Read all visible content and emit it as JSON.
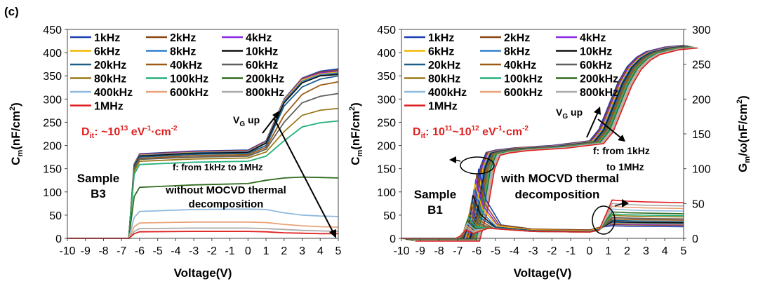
{
  "panel_label": "(c)",
  "legend_labels": [
    "1kHz",
    "2kHz",
    "4kHz",
    "6kHz",
    "8kHz",
    "10kHz",
    "20kHz",
    "40kHz",
    "60kHz",
    "80kHz",
    "100kHz",
    "200kHz",
    "400kHz",
    "600kHz",
    "800kHz",
    "1MHz"
  ],
  "colors": {
    "series": [
      "#1f3fb4",
      "#8b4513",
      "#8a2be2",
      "#f0b800",
      "#2f80d0",
      "#111111",
      "#1c5d8a",
      "#9c5a14",
      "#5e5e5e",
      "#9a7a18",
      "#23b07a",
      "#2e6b1e",
      "#8fb9dd",
      "#e8a37a",
      "#aaaaaa",
      "#e02020"
    ],
    "annotation_red": "#e02020"
  },
  "chart_data": [
    {
      "type": "line",
      "xlabel": "Voltage(V)",
      "ylabel_main": "C",
      "ylabel_sub": "m",
      "ylabel_rest": "(nF/cm",
      "ylabel_sup": "2",
      "ylabel_end": ")",
      "xlim": [
        -10,
        5
      ],
      "ylim": [
        0,
        450
      ],
      "x_ticks": [
        "-10",
        "-9",
        "-8",
        "-7",
        "-6",
        "-5",
        "-4",
        "-3",
        "-2",
        "-1",
        "0",
        "1",
        "2",
        "3",
        "4",
        "5"
      ],
      "y_ticks": [
        "0",
        "50",
        "100",
        "150",
        "200",
        "250",
        "300",
        "350",
        "400",
        "450"
      ],
      "legend_columns": 3,
      "grid": false,
      "series": [
        {
          "name": "1kHz",
          "x": [
            -10,
            -6.6,
            -6.3,
            -6,
            -3,
            0,
            1,
            2,
            3,
            4,
            5
          ],
          "y": [
            0,
            0,
            160,
            182,
            188,
            190,
            210,
            300,
            345,
            360,
            365
          ]
        },
        {
          "name": "2kHz",
          "x": [
            -10,
            -6.6,
            -6.3,
            -6,
            -3,
            0,
            1,
            2,
            3,
            4,
            5
          ],
          "y": [
            0,
            0,
            159,
            181,
            187,
            189,
            209,
            299,
            344,
            358,
            362
          ]
        },
        {
          "name": "4kHz",
          "x": [
            -10,
            -6.6,
            -6.3,
            -6,
            -3,
            0,
            1,
            2,
            3,
            4,
            5
          ],
          "y": [
            0,
            0,
            158,
            180,
            186,
            188,
            208,
            298,
            343,
            356,
            360
          ]
        },
        {
          "name": "6kHz",
          "x": [
            -10,
            -6.6,
            -6.3,
            -6,
            -3,
            0,
            1,
            2,
            3,
            4,
            5
          ],
          "y": [
            0,
            0,
            157,
            179,
            185,
            187,
            207,
            297,
            341,
            354,
            358
          ]
        },
        {
          "name": "8kHz",
          "x": [
            -10,
            -6.6,
            -6.3,
            -6,
            -3,
            0,
            1,
            2,
            3,
            4,
            5
          ],
          "y": [
            0,
            0,
            156,
            178,
            184,
            186,
            206,
            295,
            338,
            352,
            356
          ]
        },
        {
          "name": "10kHz",
          "x": [
            -10,
            -6.6,
            -6.3,
            -6,
            -3,
            0,
            1,
            2,
            3,
            4,
            5
          ],
          "y": [
            0,
            0,
            155,
            177,
            183,
            185,
            205,
            292,
            335,
            350,
            353
          ]
        },
        {
          "name": "20kHz",
          "x": [
            -10,
            -6.6,
            -6.3,
            -6,
            -3,
            0,
            1,
            2,
            3,
            4,
            5
          ],
          "y": [
            0,
            0,
            153,
            175,
            181,
            183,
            200,
            285,
            326,
            343,
            350
          ]
        },
        {
          "name": "40kHz",
          "x": [
            -10,
            -6.6,
            -6.3,
            -6,
            -3,
            0,
            1,
            2,
            3,
            4,
            5
          ],
          "y": [
            0,
            0,
            150,
            172,
            178,
            180,
            196,
            265,
            310,
            330,
            337
          ]
        },
        {
          "name": "60kHz",
          "x": [
            -10,
            -6.6,
            -6.3,
            -6,
            -3,
            0,
            1,
            2,
            3,
            4,
            5
          ],
          "y": [
            0,
            0,
            148,
            170,
            175,
            177,
            192,
            250,
            292,
            306,
            312
          ]
        },
        {
          "name": "80kHz",
          "x": [
            -10,
            -6.6,
            -6.3,
            -6,
            -3,
            0,
            1,
            2,
            3,
            4,
            5
          ],
          "y": [
            0,
            0,
            144,
            166,
            171,
            173,
            186,
            230,
            265,
            276,
            280
          ]
        },
        {
          "name": "100kHz",
          "x": [
            -10,
            -6.6,
            -6.3,
            -6,
            -3,
            0,
            1,
            2,
            3,
            4,
            5
          ],
          "y": [
            0,
            0,
            138,
            159,
            164,
            166,
            177,
            210,
            240,
            249,
            253
          ]
        },
        {
          "name": "200kHz",
          "x": [
            -10,
            -6.6,
            -6.3,
            -6,
            -3,
            0,
            1,
            2,
            3,
            4,
            5
          ],
          "y": [
            0,
            0,
            90,
            110,
            115,
            118,
            125,
            130,
            132,
            131,
            130
          ]
        },
        {
          "name": "400kHz",
          "x": [
            -10,
            -6.6,
            -6.3,
            -6,
            -3,
            0,
            1,
            2,
            3,
            4,
            5
          ],
          "y": [
            0,
            0,
            45,
            58,
            62,
            63,
            62,
            55,
            50,
            48,
            47
          ]
        },
        {
          "name": "600kHz",
          "x": [
            -10,
            -6.6,
            -6.3,
            -6,
            -3,
            0,
            1,
            2,
            3,
            4,
            5
          ],
          "y": [
            0,
            0,
            25,
            33,
            35,
            35,
            34,
            30,
            27,
            25,
            24
          ]
        },
        {
          "name": "800kHz",
          "x": [
            -10,
            -6.6,
            -6.3,
            -6,
            -3,
            0,
            1,
            2,
            3,
            4,
            5
          ],
          "y": [
            0,
            0,
            15,
            21,
            22,
            22,
            21,
            19,
            17,
            16,
            15
          ]
        },
        {
          "name": "1MHz",
          "x": [
            -10,
            -6.6,
            -6.3,
            -6,
            -3,
            0,
            1,
            2,
            3,
            4,
            5
          ],
          "y": [
            0,
            0,
            10,
            14,
            15,
            15,
            14,
            12,
            11,
            10,
            10
          ]
        }
      ],
      "annotations": {
        "dit_main": "D",
        "dit_sub": "it",
        "dit_colon": ": ~10",
        "dit_exp1": "13",
        "dit_unit": " eV",
        "dit_exp2": "-1",
        "dit_dot": "·cm",
        "dit_exp3": "-2",
        "vg_v": "V",
        "vg_sub": "G",
        "vg_up": " up",
        "freq": "f: from 1kHz to 1MHz",
        "sample_line1": "Sample",
        "sample_line2": "B3",
        "note_line1": "without MOCVD thermal",
        "note_line2": "decomposition"
      }
    },
    {
      "type": "line",
      "xlabel": "Voltage(V)",
      "ylabel_main": "C",
      "ylabel_sub": "m",
      "ylabel_rest": "(nF/cm",
      "ylabel_sup": "2",
      "ylabel_end": ")",
      "y2label_main": "G",
      "y2label_sub": "m",
      "y2label_rest": "/ω(nF/cm",
      "y2label_sup": "2",
      "y2label_end": ")",
      "xlim": [
        -10,
        5
      ],
      "ylim": [
        0,
        450
      ],
      "y2lim": [
        0,
        300
      ],
      "x_ticks": [
        "-10",
        "-9",
        "-8",
        "-7",
        "-6",
        "-5",
        "-4",
        "-3",
        "-2",
        "-1",
        "0",
        "1",
        "2",
        "3",
        "4",
        "5"
      ],
      "y_ticks": [
        "0",
        "50",
        "100",
        "150",
        "200",
        "250",
        "300",
        "350",
        "400",
        "450"
      ],
      "y2_ticks": [
        "0",
        "50",
        "100",
        "150",
        "200",
        "250",
        "300"
      ],
      "legend_columns": 3,
      "grid": false,
      "capacitance_x": [
        -10,
        -6.6,
        -6.2,
        -5.8,
        -5.5,
        -5,
        -4,
        -2,
        0,
        0.5,
        1,
        1.5,
        2,
        2.5,
        3,
        4,
        5
      ],
      "capacitance_base_y": [
        0,
        0,
        60,
        155,
        185,
        190,
        195,
        200,
        210,
        235,
        285,
        335,
        370,
        390,
        402,
        412,
        416
      ],
      "capacitance_x_shift_step": 0.05,
      "conductance_peak_y": [
        100,
        92,
        85,
        78,
        70,
        62,
        55,
        48,
        40,
        35,
        30,
        26,
        22,
        18,
        15,
        12
      ],
      "conductance_peak_x": [
        -5.9,
        -6.0,
        -6.05,
        -6.1,
        -6.15,
        -6.2,
        -6.25,
        -6.3,
        -6.35,
        -6.4,
        -6.45,
        -6.5,
        -6.5,
        -6.55,
        -6.55,
        -6.6
      ],
      "conductance_plateau_y": [
        18,
        20,
        21,
        22,
        23,
        24,
        26,
        28,
        30,
        33,
        35,
        38,
        42,
        46,
        50,
        55
      ],
      "conductance_baseline_y": [
        12,
        12,
        11,
        11,
        10,
        10,
        10,
        9,
        9,
        9,
        9,
        9,
        9,
        9,
        9,
        9
      ],
      "annotations": {
        "dit_main": "D",
        "dit_sub": "it",
        "dit_colon": ": 10",
        "dit_exp1": "11",
        "dit_tilde": "~10",
        "dit_exp2": "12",
        "dit_unit": " eV",
        "dit_exp3": "-1",
        "dit_dot": "·cm",
        "dit_exp4": "-2",
        "vg_v": "V",
        "vg_sub": "G",
        "vg_up": " up",
        "freq_line1": "f: from 1kHz",
        "freq_line2": "to 1MHz",
        "sample_line1": "Sample",
        "sample_line2": "B1",
        "note_line1": "with MOCVD thermal",
        "note_line2": "decomposition"
      }
    }
  ]
}
